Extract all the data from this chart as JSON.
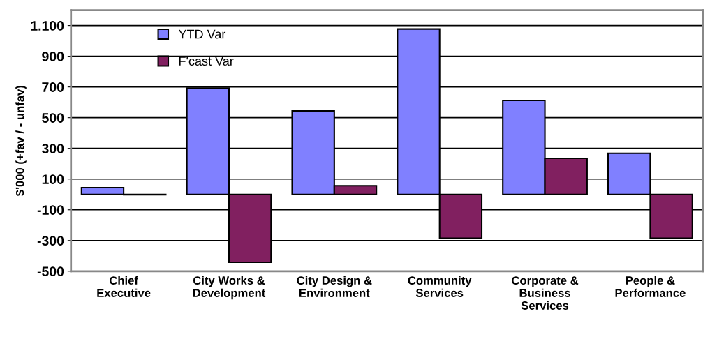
{
  "chart_data": {
    "type": "bar",
    "ylabel": "$'000 (+fav / - unfav)",
    "categories": [
      "Chief\nExecutive",
      "City Works &\nDevelopment",
      "City Design &\nEnvironment",
      "Community\nServices",
      "Corporate &\nBusiness\nServices",
      "People &\nPerformance"
    ],
    "series": [
      {
        "name": "YTD Var",
        "color": "#8080ff",
        "values": [
          44,
          693,
          544,
          1077,
          612,
          268
        ]
      },
      {
        "name": "F'cast Var",
        "color": "#812060",
        "values": [
          -2,
          -442,
          57,
          -285,
          235,
          -285
        ]
      }
    ],
    "ylim": [
      -500,
      1200
    ],
    "yticks": [
      -500,
      -300,
      -100,
      100,
      300,
      500,
      700,
      900,
      {
        "value": 1100,
        "label": "1.100"
      }
    ],
    "grid": "y",
    "legend": "top left"
  }
}
